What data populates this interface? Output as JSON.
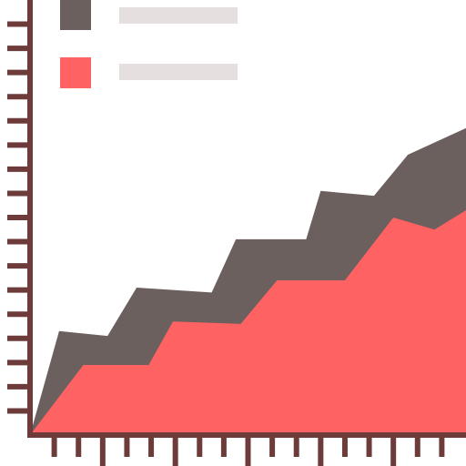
{
  "chart_data": {
    "type": "area",
    "xlim": [
      0,
      18
    ],
    "ylim": [
      0,
      18
    ],
    "xticks": [
      1,
      2,
      3,
      4,
      5,
      6,
      7,
      8,
      9,
      10,
      11,
      12,
      13,
      14,
      15,
      16,
      17
    ],
    "yticks": [
      1,
      2,
      3,
      4,
      5,
      6,
      7,
      8,
      9,
      10,
      11,
      12,
      13,
      14,
      15,
      16,
      17
    ],
    "axis_color": "#6e3b3b",
    "series": [
      {
        "color": "#6b605e",
        "x": [
          0,
          1.2,
          3.2,
          4.4,
          7.5,
          8.5,
          11.4,
          12.0,
          14.2,
          15.6,
          18
        ],
        "values": [
          0,
          4.3,
          4.1,
          6.1,
          5.9,
          8.1,
          8.1,
          10.1,
          9.9,
          11.6,
          12.7
        ]
      },
      {
        "color": "#ff6262",
        "x": [
          0,
          2.2,
          4.9,
          5.9,
          8.7,
          10.2,
          13.0,
          15.0,
          16.7,
          18
        ],
        "values": [
          0,
          2.9,
          2.9,
          4.7,
          4.6,
          6.4,
          6.4,
          9.0,
          8.5,
          9.3
        ]
      }
    ]
  }
}
